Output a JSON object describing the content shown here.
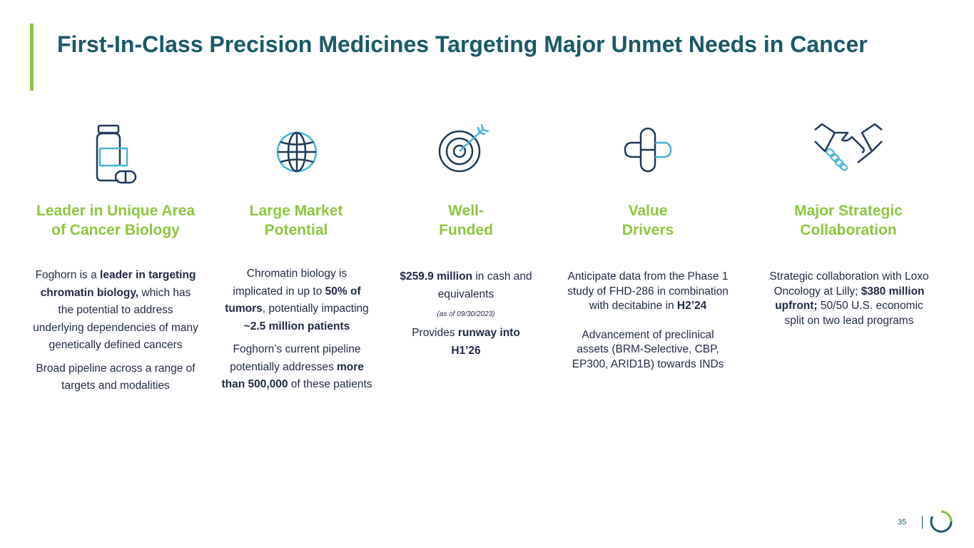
{
  "slide": {
    "title": "First-In-Class Precision Medicines Targeting Major Unmet Needs in Cancer",
    "page_number": "35"
  },
  "colors": {
    "title": "#1a5968",
    "accent_green": "#8dc63f",
    "icon_navy": "#1f3a5a",
    "icon_blue": "#4ab3d9",
    "body_text": "#1f2a44"
  },
  "columns": [
    {
      "icon": "medicine-bottle-icon",
      "title_lines": [
        "Leader in Unique Area",
        "of Cancer Biology"
      ],
      "p1": {
        "a": "Foghorn is a ",
        "b": "leader in targeting chromatin biology,",
        "c": " which has the potential to address underlying  dependencies of many genetically defined cancers"
      },
      "p2": "Broad pipeline across a range of targets and modalities"
    },
    {
      "icon": "globe-icon",
      "title_lines": [
        "Large Market",
        "Potential"
      ],
      "p1": {
        "a": "Chromatin biology is implicated in up to ",
        "b": "50% of tumors",
        "c": ", potentially impacting ",
        "d": "~2.5 million patients"
      },
      "p2": {
        "a": "Foghorn’s current pipeline potentially addresses ",
        "b": "more than 500,000",
        "c": " of these patients"
      }
    },
    {
      "icon": "target-icon",
      "title_lines": [
        "Well-",
        "Funded"
      ],
      "p1": {
        "a": "$259.9 million",
        "b": " in cash and equivalents"
      },
      "note": "(as of 09/30/2023)",
      "p2": {
        "a": "Provides ",
        "b": "runway into H1’26"
      }
    },
    {
      "icon": "plus-pill-icon",
      "title_lines": [
        "Value",
        "Drivers"
      ],
      "p1": {
        "a": "Anticipate data from the Phase 1 study of FHD-286 in combination with decitabine in ",
        "b": "H2’24"
      },
      "p2": "Advancement of preclinical assets (BRM-Selective, CBP, EP300, ARID1B) towards INDs"
    },
    {
      "icon": "handshake-icon",
      "title_lines": [
        "Major Strategic",
        "Collaboration"
      ],
      "p1": {
        "a": "Strategic collaboration with Loxo Oncology at Lilly; ",
        "b": "$380 million upfront;",
        "c": " 50/50 U.S. economic split on two lead programs"
      }
    }
  ]
}
